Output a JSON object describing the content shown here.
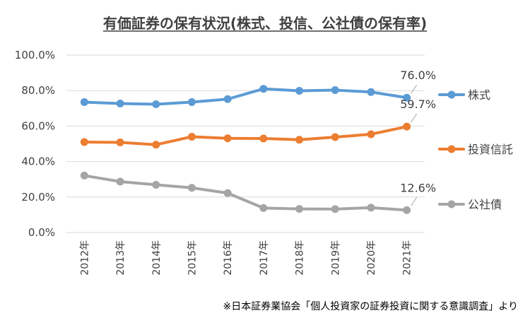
{
  "chart_data": {
    "type": "line",
    "title": "有価証券の保有状況(株式、投信、公社債の保有率)",
    "xlabel": "",
    "ylabel": "",
    "categories": [
      "2012年",
      "2013年",
      "2014年",
      "2015年",
      "2016年",
      "2017年",
      "2018年",
      "2019年",
      "2020年",
      "2021年"
    ],
    "ylim": [
      0,
      100
    ],
    "yticks": [
      "0.0%",
      "20.0%",
      "40.0%",
      "60.0%",
      "80.0%",
      "100.0%"
    ],
    "grid": true,
    "legend_position": "right",
    "series": [
      {
        "name": "株式",
        "color": "#5B9BD5",
        "values": [
          73.5,
          72.7,
          72.3,
          73.5,
          75.2,
          81.0,
          79.9,
          80.3,
          79.2,
          76.0
        ],
        "last_label": "76.0%"
      },
      {
        "name": "投資信託",
        "color": "#ED7D31",
        "values": [
          51.0,
          50.8,
          49.5,
          54.0,
          53.1,
          53.0,
          52.3,
          53.8,
          55.4,
          59.7
        ],
        "last_label": "59.7%"
      },
      {
        "name": "公社債",
        "color": "#A5A5A5",
        "values": [
          32.1,
          28.7,
          26.9,
          25.2,
          22.2,
          13.8,
          13.3,
          13.2,
          14.0,
          12.6
        ],
        "last_label": "12.6%"
      }
    ],
    "source_note": "※日本証券業協会「個人投資家の証券投資に関する意識調査」より"
  }
}
